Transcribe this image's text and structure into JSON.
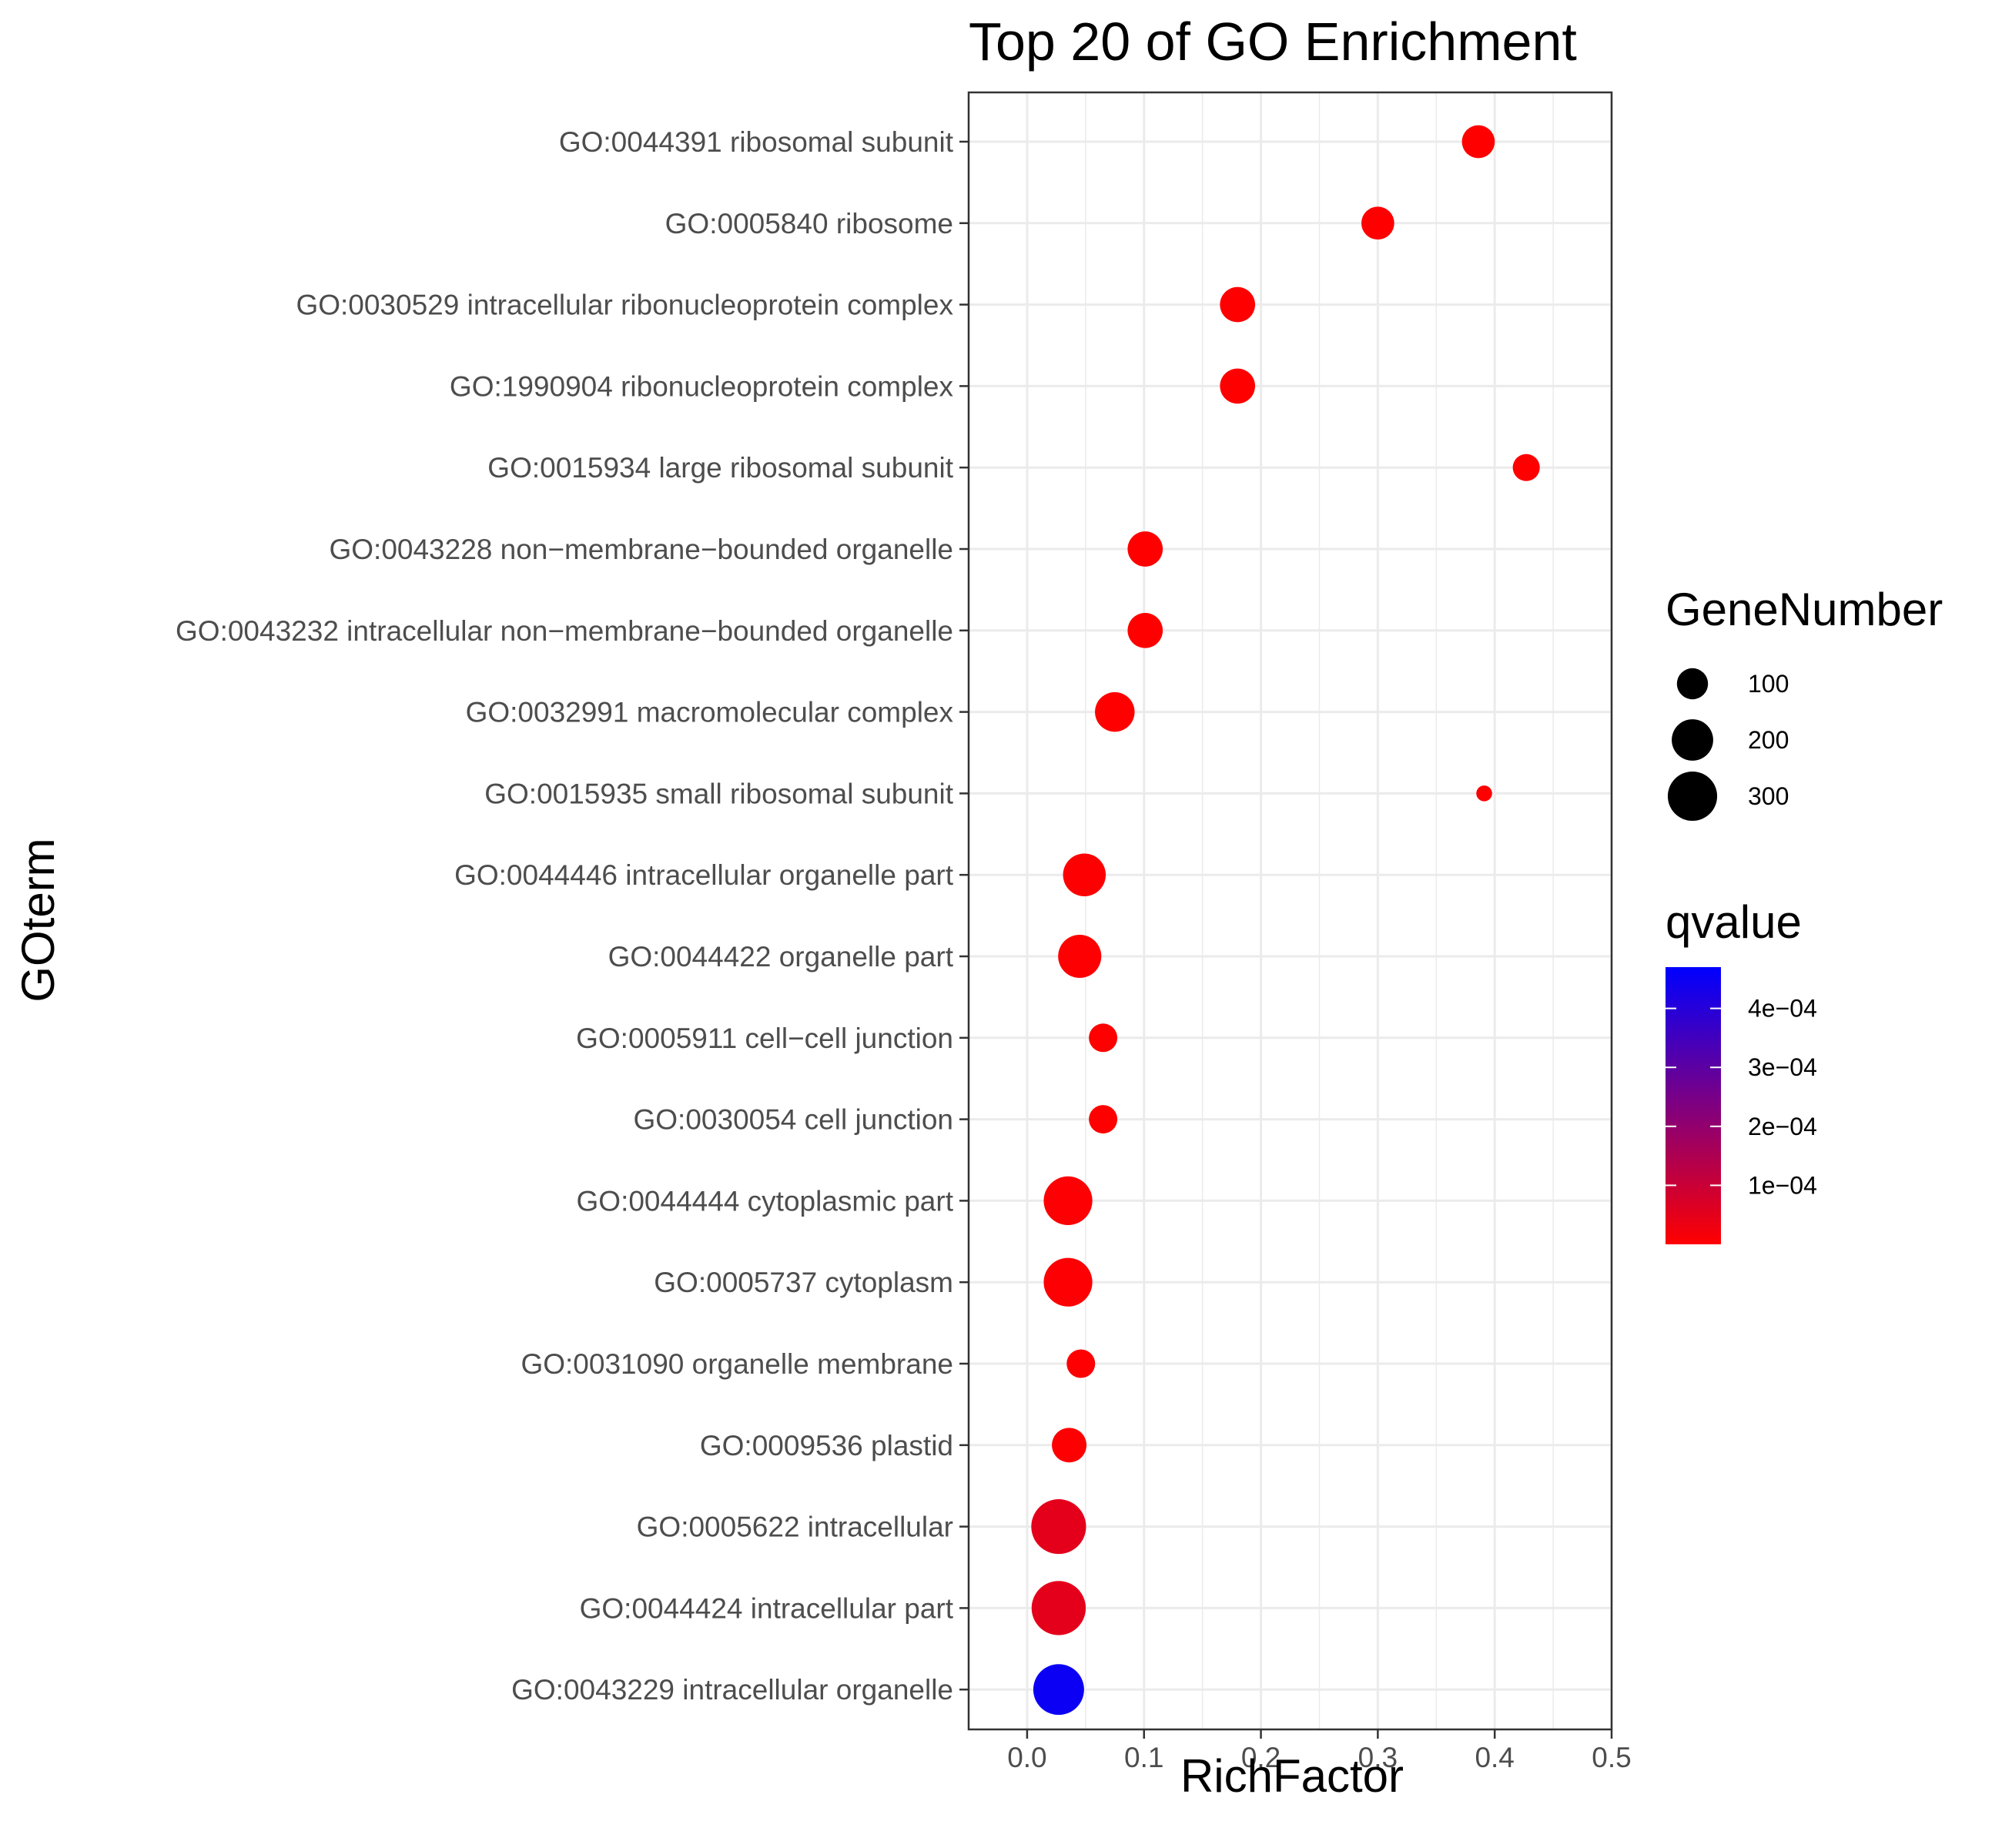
{
  "chart_data": {
    "type": "scatter",
    "title": "Top 20 of GO Enrichment",
    "xlabel": "RichFactor",
    "ylabel": "GOterm",
    "xlim": [
      -0.05,
      0.5
    ],
    "xticks": [
      "0.0",
      "0.1",
      "0.2",
      "0.3",
      "0.4",
      "0.5"
    ],
    "grid": true,
    "points": [
      {
        "term": "GO:0044391 ribosomal subunit",
        "x": 0.386,
        "gene_number": 115,
        "qvalue": 1e-07
      },
      {
        "term": "GO:0005840 ribosome",
        "x": 0.3,
        "gene_number": 115,
        "qvalue": 1e-07
      },
      {
        "term": "GO:0030529 intracellular ribonucleoprotein complex",
        "x": 0.18,
        "gene_number": 135,
        "qvalue": 1e-07
      },
      {
        "term": "GO:1990904 ribonucleoprotein complex",
        "x": 0.18,
        "gene_number": 135,
        "qvalue": 1e-07
      },
      {
        "term": "GO:0015934 large ribosomal subunit",
        "x": 0.427,
        "gene_number": 70,
        "qvalue": 1e-07
      },
      {
        "term": "GO:0043228 non−membrane−bounded organelle",
        "x": 0.101,
        "gene_number": 135,
        "qvalue": 1e-07
      },
      {
        "term": "GO:0043232 intracellular non−membrane−bounded organelle",
        "x": 0.101,
        "gene_number": 135,
        "qvalue": 1e-07
      },
      {
        "term": "GO:0032991 macromolecular complex",
        "x": 0.075,
        "gene_number": 180,
        "qvalue": 1e-07
      },
      {
        "term": "GO:0015935 small ribosomal subunit",
        "x": 0.391,
        "gene_number": 15,
        "qvalue": 1e-07
      },
      {
        "term": "GO:0044446 intracellular organelle part",
        "x": 0.049,
        "gene_number": 215,
        "qvalue": 3e-06
      },
      {
        "term": "GO:0044422 organelle part",
        "x": 0.045,
        "gene_number": 220,
        "qvalue": 3e-06
      },
      {
        "term": "GO:0005911 cell−cell junction",
        "x": 0.065,
        "gene_number": 80,
        "qvalue": 1e-07
      },
      {
        "term": "GO:0030054 cell junction",
        "x": 0.065,
        "gene_number": 80,
        "qvalue": 1e-07
      },
      {
        "term": "GO:0044444 cytoplasmic part",
        "x": 0.035,
        "gene_number": 290,
        "qvalue": 5e-06
      },
      {
        "term": "GO:0005737 cytoplasm",
        "x": 0.035,
        "gene_number": 290,
        "qvalue": 5e-06
      },
      {
        "term": "GO:0031090 organelle membrane",
        "x": 0.046,
        "gene_number": 80,
        "qvalue": 2e-06
      },
      {
        "term": "GO:0009536 plastid",
        "x": 0.036,
        "gene_number": 130,
        "qvalue": 3e-06
      },
      {
        "term": "GO:0005622 intracellular",
        "x": 0.027,
        "gene_number": 380,
        "qvalue": 5e-05
      },
      {
        "term": "GO:0044424 intracellular part",
        "x": 0.027,
        "gene_number": 370,
        "qvalue": 5e-05
      },
      {
        "term": "GO:0043229 intracellular organelle",
        "x": 0.027,
        "gene_number": 320,
        "qvalue": 0.00045
      }
    ],
    "size_legend": {
      "title": "GeneNumber",
      "values": [
        100,
        200,
        300
      ],
      "labels": [
        "100",
        "200",
        "300"
      ]
    },
    "color_legend": {
      "title": "qvalue",
      "low_color": "#ff0000",
      "high_color": "#0000ff",
      "range": [
        0,
        0.00047
      ],
      "ticks": [
        0.0001,
        0.0002,
        0.0003,
        0.0004
      ],
      "labels": [
        "1e−04",
        "2e−04",
        "3e−04",
        "4e−04"
      ]
    },
    "colors": {
      "grid": "#ebebeb",
      "panel_border": "#333333",
      "tick_text": "#4d4d4d"
    }
  }
}
